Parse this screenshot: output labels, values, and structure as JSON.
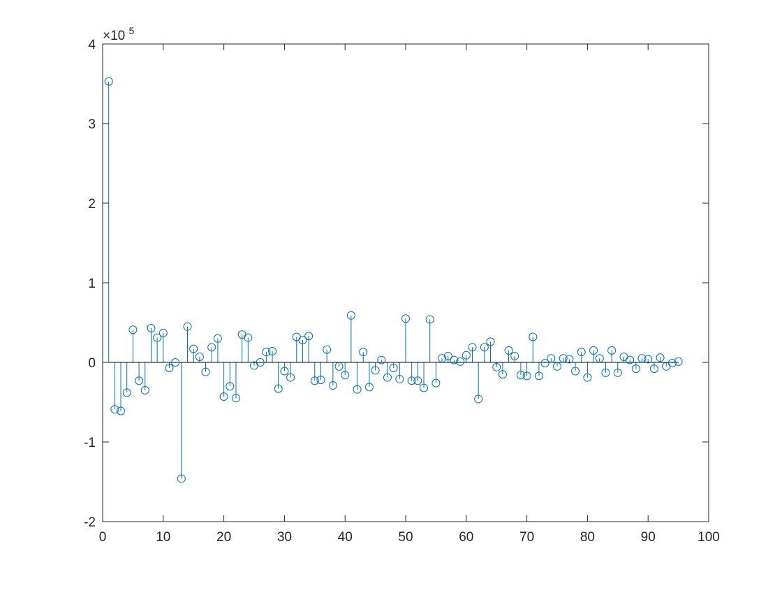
{
  "chart_data": {
    "type": "stem",
    "title": "",
    "xlabel": "",
    "ylabel": "",
    "xlim": [
      0,
      100
    ],
    "ylim": [
      -200000,
      400000
    ],
    "x_ticks": [
      0,
      10,
      20,
      30,
      40,
      50,
      60,
      70,
      80,
      90,
      100
    ],
    "x_tick_labels": [
      "0",
      "10",
      "20",
      "30",
      "40",
      "50",
      "60",
      "70",
      "80",
      "90",
      "100"
    ],
    "y_ticks": [
      -200000,
      -100000,
      0,
      100000,
      200000,
      300000,
      400000
    ],
    "y_tick_labels": [
      "-2",
      "-1",
      "0",
      "1",
      "2",
      "3",
      "4"
    ],
    "y_exponent_label": "×10",
    "y_exponent_power": "5",
    "grid": false,
    "legend": "none",
    "baseline": 0,
    "series": [
      {
        "color": "#0072BD",
        "marker": "circle-open",
        "x": [
          1,
          2,
          3,
          4,
          5,
          6,
          7,
          8,
          9,
          10,
          11,
          12,
          13,
          14,
          15,
          16,
          17,
          18,
          19,
          20,
          21,
          22,
          23,
          24,
          25,
          26,
          27,
          28,
          29,
          30,
          31,
          32,
          33,
          34,
          35,
          36,
          37,
          38,
          39,
          40,
          41,
          42,
          43,
          44,
          45,
          46,
          47,
          48,
          49,
          50,
          51,
          52,
          53,
          54,
          55,
          56,
          57,
          58,
          59,
          60,
          61,
          62,
          63,
          64,
          65,
          66,
          67,
          68,
          69,
          70,
          71,
          72,
          73,
          74,
          75,
          76,
          77,
          78,
          79,
          80,
          81,
          82,
          83,
          84,
          85,
          86,
          87,
          88,
          89,
          90,
          91,
          92,
          93,
          94,
          95
        ],
        "y": [
          353000,
          -59000,
          -61000,
          -38000,
          41000,
          -23000,
          -35000,
          43000,
          31000,
          37000,
          -7000,
          0,
          -146000,
          45000,
          17000,
          7000,
          -12000,
          19000,
          30000,
          -43000,
          -30000,
          -45000,
          35000,
          31000,
          -4000,
          0,
          13000,
          14000,
          -33000,
          -11000,
          -19000,
          32000,
          28000,
          33000,
          -23000,
          -22000,
          16000,
          -29000,
          -5000,
          -16000,
          59000,
          -34000,
          13000,
          -31000,
          -10000,
          3000,
          -19000,
          -7000,
          -21000,
          55000,
          -23000,
          -23000,
          -32000,
          54000,
          -26000,
          5000,
          8000,
          3000,
          1000,
          9000,
          19000,
          -46000,
          19000,
          26000,
          -6000,
          -15000,
          15000,
          8000,
          -16000,
          -17000,
          32000,
          -17000,
          -1000,
          5000,
          -5000,
          5000,
          4000,
          -11000,
          13000,
          -19000,
          15000,
          5000,
          -13000,
          15000,
          -13000,
          7000,
          3000,
          -8000,
          5000,
          4000,
          -8000,
          6000,
          -5000,
          -1000,
          1000
        ]
      }
    ]
  }
}
